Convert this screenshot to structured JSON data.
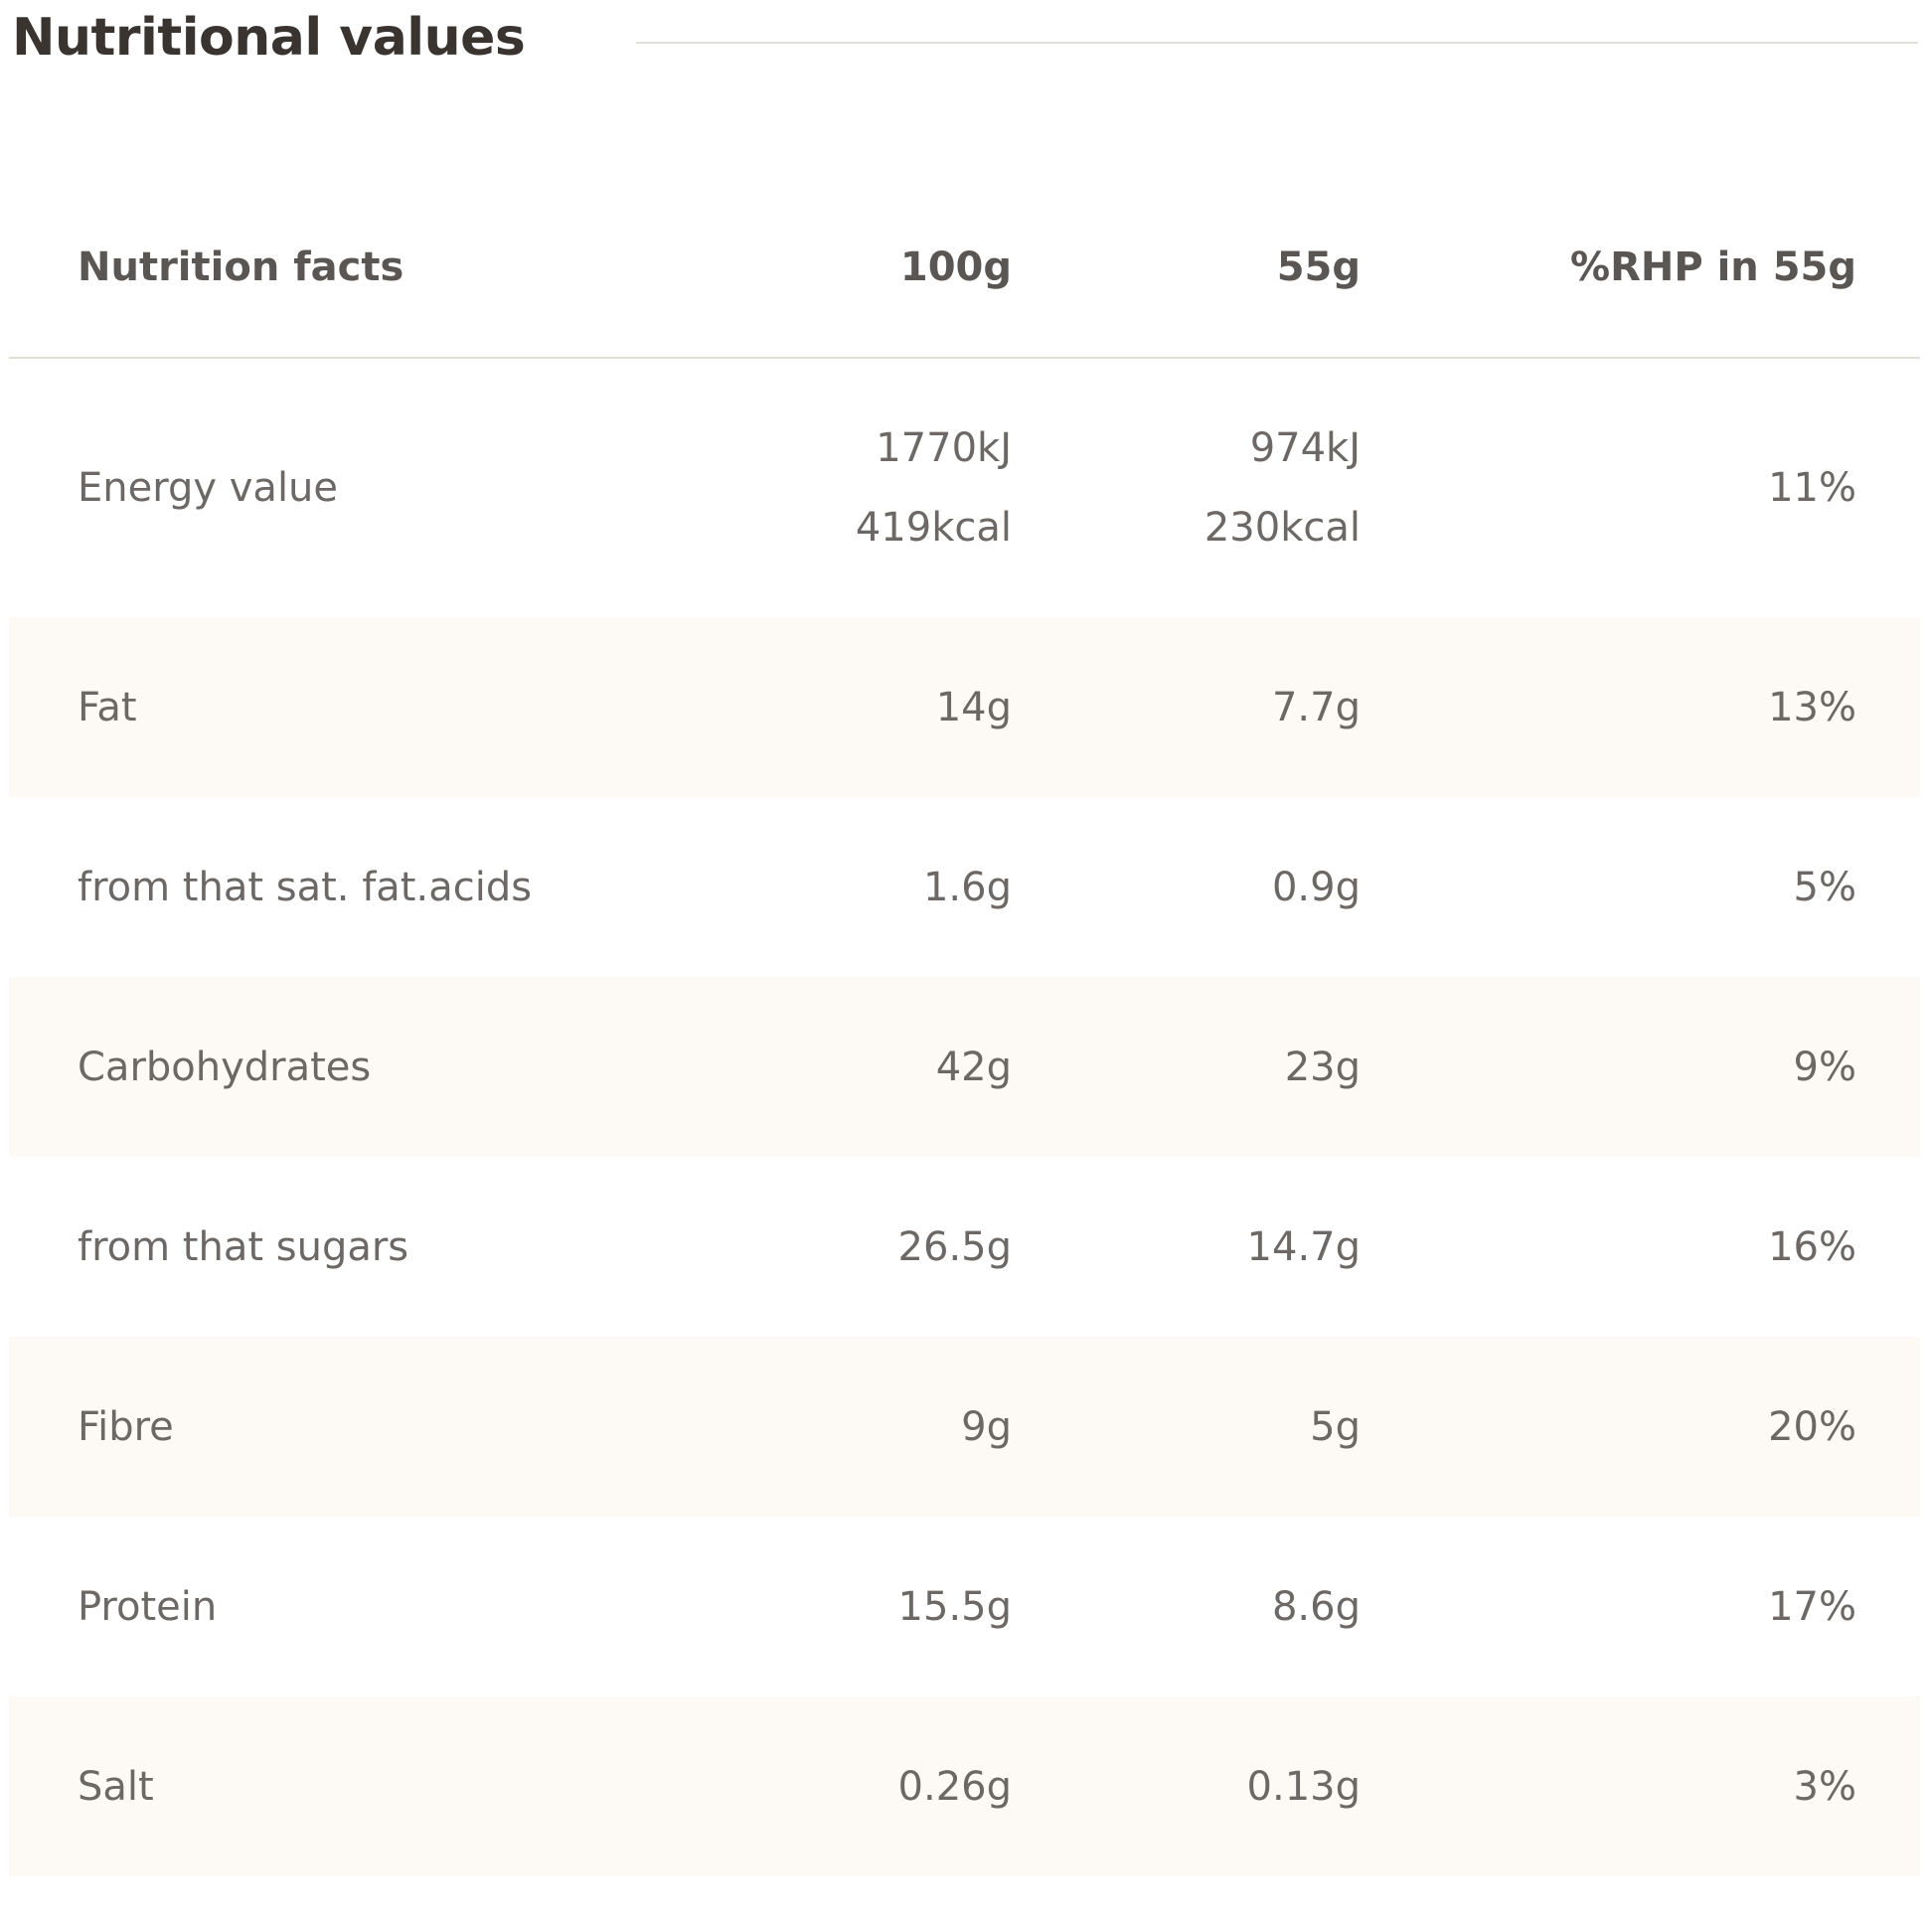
{
  "title": "Nutritional values",
  "table": {
    "header": [
      "Nutrition facts",
      "100g",
      "55g",
      "%RHP in 55g"
    ],
    "rows": [
      [
        "Energy value",
        [
          "1770kJ",
          "419kcal"
        ],
        [
          "974kJ",
          "230kcal"
        ],
        "11%"
      ],
      [
        "Fat",
        "14g",
        "7.7g",
        "13%"
      ],
      [
        "from that sat. fat.acids",
        "1.6g",
        "0.9g",
        "5%"
      ],
      [
        "Carbohydrates",
        "42g",
        "23g",
        "9%"
      ],
      [
        "from that sugars",
        "26.5g",
        "14.7g",
        "16%"
      ],
      [
        "Fibre",
        "9g",
        "5g",
        "20%"
      ],
      [
        "Protein",
        "15.5g",
        "8.6g",
        "17%"
      ],
      [
        "Salt",
        "0.26g",
        "0.13g",
        "3%"
      ]
    ]
  }
}
